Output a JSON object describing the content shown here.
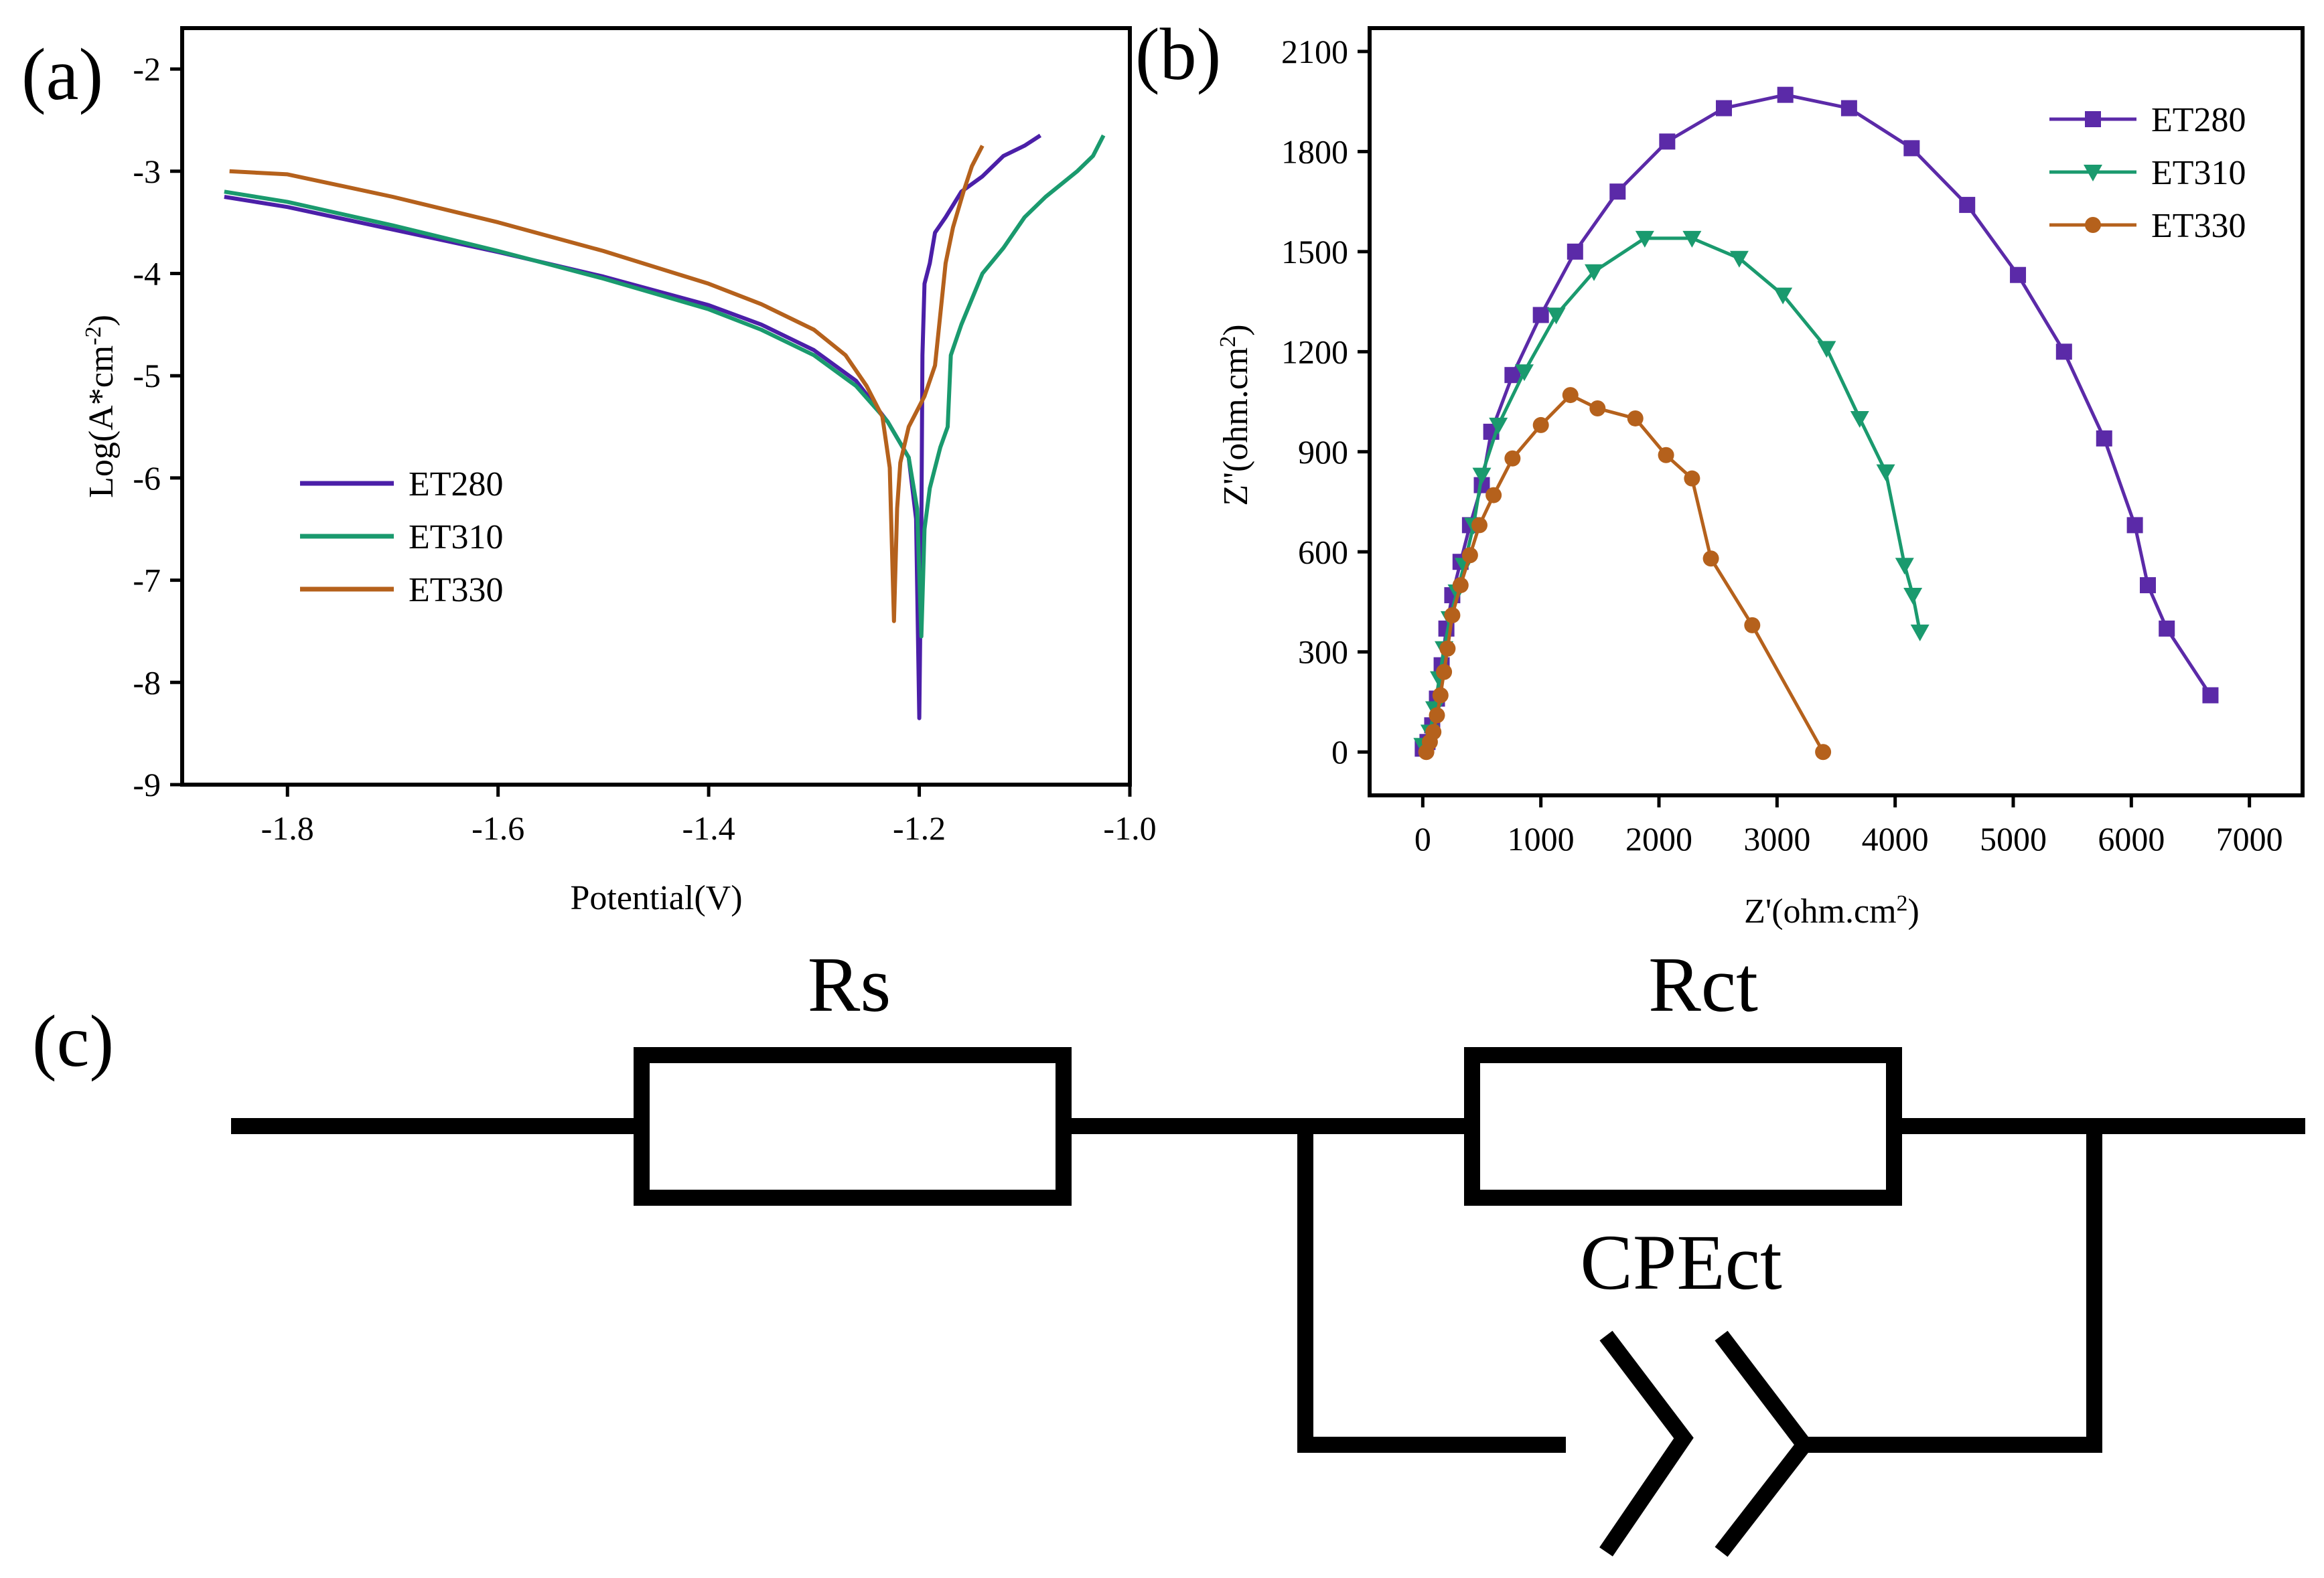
{
  "chart_data": [
    {
      "type": "line",
      "panel_label": "(a)",
      "xlabel": "Potential(V)",
      "ylabel": "Log(A*cm",
      "ylabel_sup": "-2",
      "ylabel_close": ")",
      "xlim": [
        -1.9,
        -1.0
      ],
      "ylim": [
        -9,
        -1.6
      ],
      "xticks": [
        -1.8,
        -1.6,
        -1.4,
        -1.2,
        -1.0
      ],
      "xtick_labels": [
        "-1.8",
        "-1.6",
        "-1.4",
        "-1.2",
        "-1.0"
      ],
      "yticks": [
        -9,
        -8,
        -7,
        -6,
        -5,
        -4,
        -3,
        -2
      ],
      "ytick_labels": [
        "-9",
        "-8",
        "-7",
        "-6",
        "-5",
        "-4",
        "-3",
        "-2"
      ],
      "legend_position": "lower-left",
      "series": [
        {
          "name": "ET280",
          "color": "#4b1fa8",
          "points": [
            [
              -1.86,
              -3.25
            ],
            [
              -1.8,
              -3.35
            ],
            [
              -1.7,
              -3.57
            ],
            [
              -1.6,
              -3.79
            ],
            [
              -1.5,
              -4.03
            ],
            [
              -1.4,
              -4.31
            ],
            [
              -1.35,
              -4.5
            ],
            [
              -1.3,
              -4.75
            ],
            [
              -1.26,
              -5.05
            ],
            [
              -1.23,
              -5.45
            ],
            [
              -1.21,
              -5.8
            ],
            [
              -1.203,
              -6.4
            ],
            [
              -1.2,
              -8.35
            ],
            [
              -1.198,
              -6.5
            ],
            [
              -1.197,
              -4.8
            ],
            [
              -1.195,
              -4.1
            ],
            [
              -1.19,
              -3.9
            ],
            [
              -1.185,
              -3.6
            ],
            [
              -1.175,
              -3.45
            ],
            [
              -1.16,
              -3.2
            ],
            [
              -1.14,
              -3.05
            ],
            [
              -1.12,
              -2.85
            ],
            [
              -1.1,
              -2.75
            ],
            [
              -1.085,
              -2.65
            ]
          ]
        },
        {
          "name": "ET310",
          "color": "#1a9a6e",
          "points": [
            [
              -1.86,
              -3.2
            ],
            [
              -1.8,
              -3.3
            ],
            [
              -1.7,
              -3.53
            ],
            [
              -1.6,
              -3.78
            ],
            [
              -1.5,
              -4.05
            ],
            [
              -1.4,
              -4.35
            ],
            [
              -1.35,
              -4.55
            ],
            [
              -1.3,
              -4.8
            ],
            [
              -1.26,
              -5.1
            ],
            [
              -1.23,
              -5.45
            ],
            [
              -1.21,
              -5.8
            ],
            [
              -1.202,
              -6.3
            ],
            [
              -1.198,
              -7.55
            ],
            [
              -1.195,
              -6.5
            ],
            [
              -1.19,
              -6.1
            ],
            [
              -1.18,
              -5.7
            ],
            [
              -1.173,
              -5.5
            ],
            [
              -1.17,
              -4.8
            ],
            [
              -1.16,
              -4.5
            ],
            [
              -1.14,
              -4.0
            ],
            [
              -1.12,
              -3.75
            ],
            [
              -1.1,
              -3.45
            ],
            [
              -1.08,
              -3.25
            ],
            [
              -1.05,
              -3.0
            ],
            [
              -1.035,
              -2.85
            ],
            [
              -1.025,
              -2.65
            ]
          ]
        },
        {
          "name": "ET330",
          "color": "#b5611c",
          "points": [
            [
              -1.855,
              -3.0
            ],
            [
              -1.8,
              -3.03
            ],
            [
              -1.7,
              -3.25
            ],
            [
              -1.6,
              -3.5
            ],
            [
              -1.5,
              -3.78
            ],
            [
              -1.4,
              -4.1
            ],
            [
              -1.35,
              -4.3
            ],
            [
              -1.3,
              -4.55
            ],
            [
              -1.27,
              -4.8
            ],
            [
              -1.25,
              -5.1
            ],
            [
              -1.235,
              -5.4
            ],
            [
              -1.228,
              -5.9
            ],
            [
              -1.224,
              -7.4
            ],
            [
              -1.221,
              -6.3
            ],
            [
              -1.218,
              -5.85
            ],
            [
              -1.21,
              -5.5
            ],
            [
              -1.195,
              -5.2
            ],
            [
              -1.185,
              -4.9
            ],
            [
              -1.18,
              -4.4
            ],
            [
              -1.175,
              -3.9
            ],
            [
              -1.168,
              -3.55
            ],
            [
              -1.158,
              -3.2
            ],
            [
              -1.15,
              -2.95
            ],
            [
              -1.14,
              -2.75
            ]
          ]
        }
      ]
    },
    {
      "type": "scatter",
      "panel_label": "(b)",
      "xlabel": "Z'(ohm.cm",
      "xlabel_sup": "2",
      "xlabel_close": ")",
      "ylabel": "Z''(ohm.cm",
      "ylabel_sup": "2",
      "ylabel_close": ")",
      "xlim": [
        -450,
        7450
      ],
      "ylim": [
        -130,
        2170
      ],
      "xticks": [
        0,
        1000,
        2000,
        3000,
        4000,
        5000,
        6000,
        7000
      ],
      "xtick_labels": [
        "0",
        "1000",
        "2000",
        "3000",
        "4000",
        "5000",
        "6000",
        "7000"
      ],
      "yticks": [
        0,
        300,
        600,
        900,
        1200,
        1500,
        1800,
        2100
      ],
      "ytick_labels": [
        "0",
        "300",
        "600",
        "900",
        "1200",
        "1500",
        "1800",
        "2100"
      ],
      "legend_position": "top-right",
      "series": [
        {
          "name": "ET280",
          "color": "#5b2aa8",
          "marker": "square",
          "points": [
            [
              0,
              10
            ],
            [
              40,
              30
            ],
            [
              80,
              80
            ],
            [
              120,
              160
            ],
            [
              160,
              260
            ],
            [
              200,
              370
            ],
            [
              250,
              470
            ],
            [
              320,
              570
            ],
            [
              400,
              680
            ],
            [
              500,
              800
            ],
            [
              580,
              960
            ],
            [
              760,
              1130
            ],
            [
              1000,
              1310
            ],
            [
              1290,
              1500
            ],
            [
              1650,
              1680
            ],
            [
              2070,
              1830
            ],
            [
              2550,
              1930
            ],
            [
              3070,
              1970
            ],
            [
              3610,
              1930
            ],
            [
              4140,
              1810
            ],
            [
              4610,
              1640
            ],
            [
              5040,
              1430
            ],
            [
              5430,
              1200
            ],
            [
              5770,
              940
            ],
            [
              6030,
              680
            ],
            [
              6140,
              500
            ],
            [
              6300,
              370
            ],
            [
              6670,
              170
            ]
          ]
        },
        {
          "name": "ET310",
          "color": "#1a9a6e",
          "marker": "triangle-down",
          "points": [
            [
              0,
              20
            ],
            [
              60,
              60
            ],
            [
              100,
              130
            ],
            [
              140,
              220
            ],
            [
              180,
              310
            ],
            [
              230,
              400
            ],
            [
              290,
              480
            ],
            [
              350,
              560
            ],
            [
              430,
              680
            ],
            [
              500,
              830
            ],
            [
              640,
              980
            ],
            [
              860,
              1140
            ],
            [
              1130,
              1310
            ],
            [
              1450,
              1440
            ],
            [
              1880,
              1540
            ],
            [
              2280,
              1540
            ],
            [
              2680,
              1480
            ],
            [
              3050,
              1370
            ],
            [
              3420,
              1210
            ],
            [
              3700,
              1000
            ],
            [
              3920,
              840
            ],
            [
              4080,
              560
            ],
            [
              4150,
              470
            ],
            [
              4210,
              360
            ]
          ]
        },
        {
          "name": "ET330",
          "color": "#b5611c",
          "marker": "circle",
          "points": [
            [
              30,
              0
            ],
            [
              60,
              30
            ],
            [
              90,
              60
            ],
            [
              120,
              110
            ],
            [
              150,
              170
            ],
            [
              180,
              240
            ],
            [
              210,
              310
            ],
            [
              250,
              410
            ],
            [
              320,
              500
            ],
            [
              400,
              590
            ],
            [
              480,
              680
            ],
            [
              600,
              770
            ],
            [
              760,
              880
            ],
            [
              1000,
              980
            ],
            [
              1250,
              1070
            ],
            [
              1480,
              1030
            ],
            [
              1800,
              1000
            ],
            [
              2060,
              890
            ],
            [
              2280,
              820
            ],
            [
              2440,
              580
            ],
            [
              2790,
              380
            ],
            [
              3390,
              0
            ]
          ]
        }
      ]
    }
  ],
  "circuit": {
    "panel_label": "(c)",
    "resistor_1_label": "Rs",
    "resistor_2_label": "Rct",
    "cpe_label": "CPEct"
  }
}
